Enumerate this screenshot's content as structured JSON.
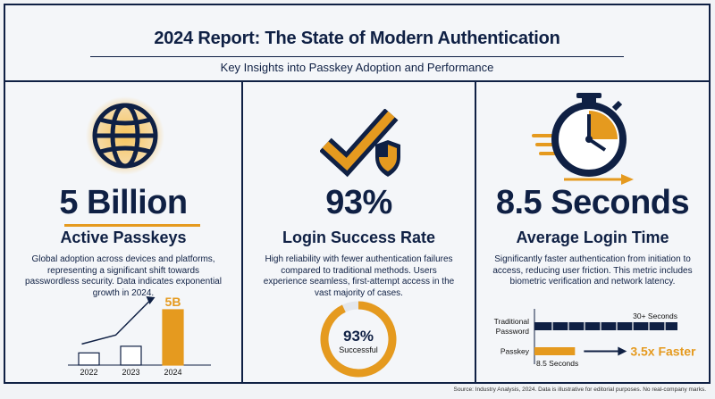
{
  "header": {
    "title": "2024 Report: The State of Modern Authentication",
    "subtitle": "Key Insights into Passkey Adoption and Performance"
  },
  "colors": {
    "navy": "#0f2044",
    "orange": "#e59a1f",
    "background": "#f4f6f9"
  },
  "panels": [
    {
      "icon": "globe-icon",
      "stat": "5 Billion",
      "label": "Active Passkeys",
      "description": "Global adoption across devices and platforms, representing a significant shift towards passwordless security. Data indicates exponential growth in 2024."
    },
    {
      "icon": "checkmark-shield-icon",
      "stat": "93%",
      "label": "Login Success Rate",
      "description": "High reliability with fewer authentication failures compared to traditional methods. Users experience seamless, first-attempt access in the vast majority of cases."
    },
    {
      "icon": "stopwatch-icon",
      "stat": "8.5 Seconds",
      "label": "Average Login Time",
      "description": "Significantly faster authentication from initiation to access, reducing user friction. This metric includes biometric verification and network latency."
    }
  ],
  "chart_data": [
    {
      "type": "bar",
      "categories": [
        "2022",
        "2023",
        "2024"
      ],
      "series": [
        {
          "values": [
            1.1,
            1.7,
            5
          ]
        }
      ],
      "data_labels": [
        "",
        "",
        "5B"
      ],
      "highlight_color": "#e59a1f",
      "trend_arrow": true
    },
    {
      "type": "pie",
      "values": [
        93,
        7
      ],
      "center_value": "93%",
      "center_label": "Successful"
    },
    {
      "type": "bar",
      "orientation": "horizontal",
      "categories": [
        "Traditional Password",
        "Passkey"
      ],
      "category_lines": [
        [
          "Traditional",
          "Password"
        ],
        [
          "Passkey"
        ]
      ],
      "values": [
        30,
        8.5
      ],
      "value_labels": [
        "30+ Seconds",
        "8.5 Seconds"
      ],
      "callout": "3.5x Faster"
    }
  ],
  "footer": {
    "source": "Source: Industry Analysis, 2024. Data is illustrative for editorial purposes. No real-company marks."
  }
}
